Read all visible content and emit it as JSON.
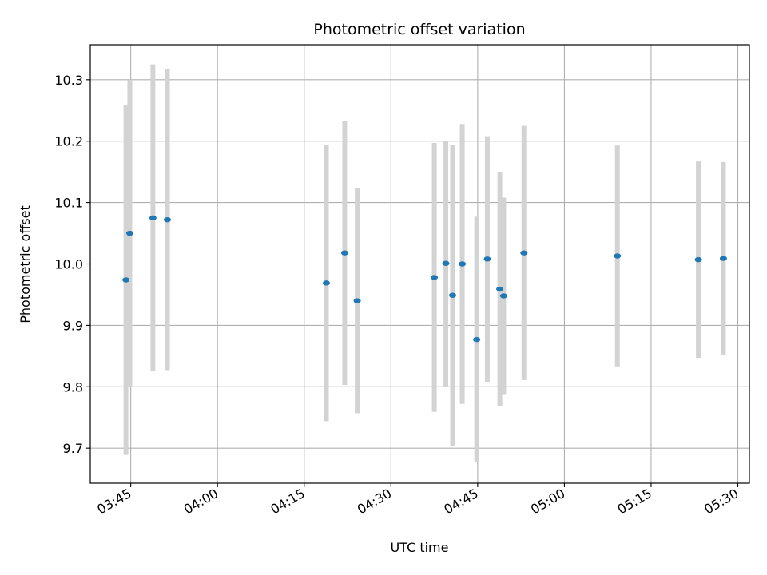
{
  "chart_data": {
    "type": "scatter",
    "title": "Photometric offset variation",
    "xlabel": "UTC time",
    "ylabel": "Photometric offset",
    "x_tick_labels": [
      "03:45",
      "04:00",
      "04:15",
      "04:30",
      "04:45",
      "05:00",
      "05:15",
      "05:30"
    ],
    "y_tick_labels": [
      "9.7",
      "9.8",
      "9.9",
      "10.0",
      "10.1",
      "10.2",
      "10.3"
    ],
    "xlim": [
      "03:38",
      "05:32"
    ],
    "ylim": [
      9.643,
      10.357
    ],
    "grid": true,
    "colors": {
      "points": "#1f77b4",
      "errorbars": "#d3d3d3",
      "grid": "#b0b0b0"
    },
    "series": [
      {
        "x": [
          "03:44:10",
          "03:44:50",
          "03:48:50",
          "03:51:20",
          "04:18:50",
          "04:22:00",
          "04:24:10",
          "04:37:30",
          "04:39:30",
          "04:40:40",
          "04:42:20",
          "04:44:50",
          "04:46:40",
          "04:48:50",
          "04:49:30",
          "04:53:00",
          "05:09:10",
          "05:23:10",
          "05:27:30"
        ],
        "y": [
          9.974,
          10.05,
          10.075,
          10.072,
          9.969,
          10.018,
          9.94,
          9.978,
          10.001,
          9.949,
          10.0,
          9.877,
          10.008,
          9.959,
          9.948,
          10.018,
          10.013,
          10.007,
          10.009
        ],
        "yerr": [
          0.285,
          0.25,
          0.25,
          0.245,
          0.225,
          0.215,
          0.183,
          0.219,
          0.2,
          0.245,
          0.228,
          0.2,
          0.2,
          0.191,
          0.16,
          0.207,
          0.18,
          0.16,
          0.157
        ]
      }
    ]
  }
}
